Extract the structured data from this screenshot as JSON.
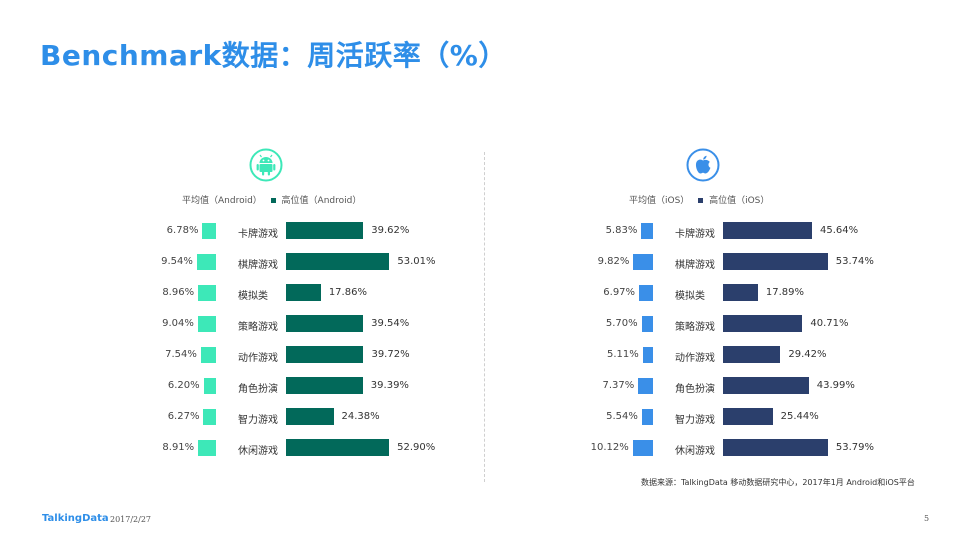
{
  "title": "Benchmark数据：周活跃率（%）",
  "colors": {
    "title": "#2e8ee8",
    "android_avg": "#3de8b8",
    "android_high": "#02695a",
    "ios_avg": "#3a8fe8",
    "ios_high": "#2b3f6c"
  },
  "chart_data": [
    {
      "type": "bar",
      "platform_icon": "android-icon",
      "legend": [
        "平均值（Android）",
        "高位值（Android）"
      ],
      "categories": [
        "卡牌游戏",
        "棋牌游戏",
        "模拟类",
        "策略游戏",
        "动作游戏",
        "角色扮演",
        "智力游戏",
        "休闲游戏"
      ],
      "series": [
        {
          "name": "平均值（Android）",
          "values": [
            6.78,
            9.54,
            8.96,
            9.04,
            7.54,
            6.2,
            6.27,
            8.91
          ],
          "labels": [
            "6.78%",
            "9.54%",
            "8.96%",
            "9.04%",
            "7.54%",
            "6.20%",
            "6.27%",
            "8.91%"
          ]
        },
        {
          "name": "高位值（Android）",
          "values": [
            39.62,
            53.01,
            17.86,
            39.54,
            39.72,
            39.39,
            24.38,
            52.9
          ],
          "labels": [
            "39.62%",
            "53.01%",
            "17.86%",
            "39.54%",
            "39.72%",
            "39.39%",
            "24.38%",
            "52.90%"
          ]
        }
      ]
    },
    {
      "type": "bar",
      "platform_icon": "apple-icon",
      "legend": [
        "平均值（iOS）",
        "高位值（iOS）"
      ],
      "categories": [
        "卡牌游戏",
        "棋牌游戏",
        "模拟类",
        "策略游戏",
        "动作游戏",
        "角色扮演",
        "智力游戏",
        "休闲游戏"
      ],
      "series": [
        {
          "name": "平均值（iOS）",
          "values": [
            5.83,
            9.82,
            6.97,
            5.7,
            5.11,
            7.37,
            5.54,
            10.12
          ],
          "labels": [
            "5.83%",
            "9.82%",
            "6.97%",
            "5.70%",
            "5.11%",
            "7.37%",
            "5.54%",
            "10.12%"
          ]
        },
        {
          "name": "高位值（iOS）",
          "values": [
            45.64,
            53.74,
            17.89,
            40.71,
            29.42,
            43.99,
            25.44,
            53.79
          ],
          "labels": [
            "45.64%",
            "53.74%",
            "17.89%",
            "40.71%",
            "29.42%",
            "43.99%",
            "25.44%",
            "53.79%"
          ]
        }
      ]
    }
  ],
  "source": "数据来源：TalkingData 移动数据研究中心，2017年1月 Android和iOS平台",
  "footer": {
    "logo": "TalkingData",
    "date": "2017/2/27",
    "page": "5"
  }
}
